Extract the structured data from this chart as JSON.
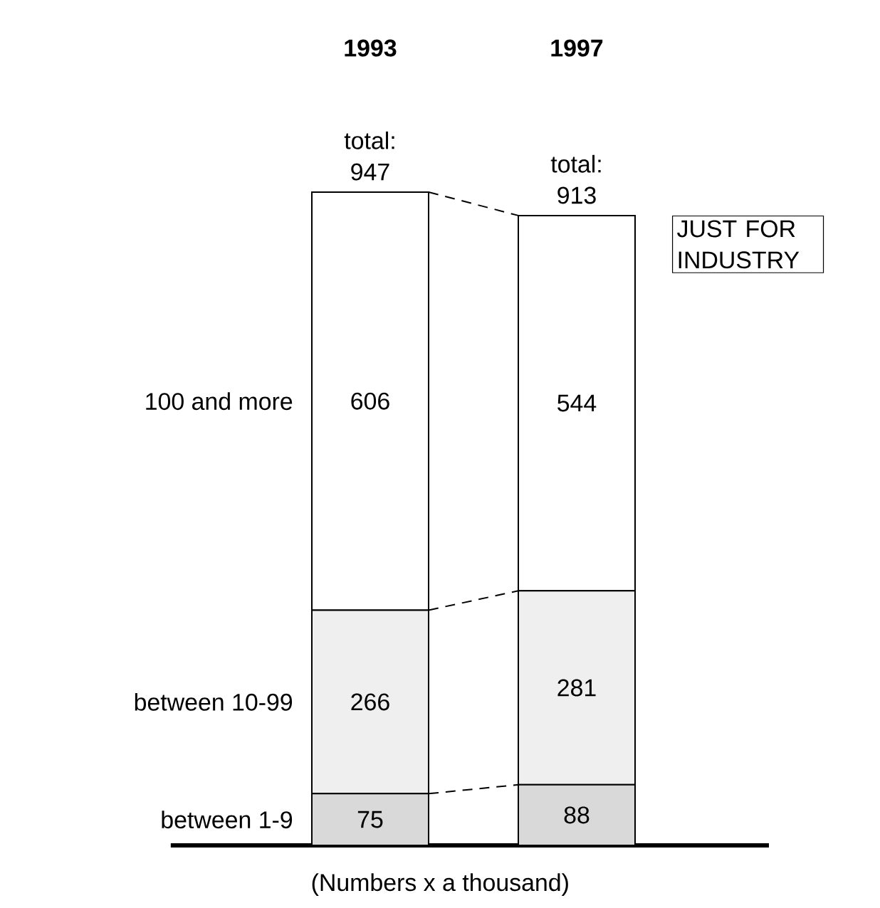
{
  "chart_data": {
    "type": "bar",
    "stacked": true,
    "categories": [
      "1993",
      "1997"
    ],
    "totals": [
      "total: 947",
      "total: 913"
    ],
    "data_labels": true,
    "series": [
      {
        "name": "between 1-9",
        "color": "#d9d9d9",
        "values": [
          75,
          88
        ]
      },
      {
        "name": "between 10-99",
        "color": "#efefef",
        "values": [
          266,
          281
        ]
      },
      {
        "name": "100 and more",
        "color": "#ffffff",
        "values": [
          606,
          544
        ]
      }
    ],
    "annotations": [
      "JUST FOR INDUSTRY",
      "(Numbers x a thousand)"
    ]
  }
}
